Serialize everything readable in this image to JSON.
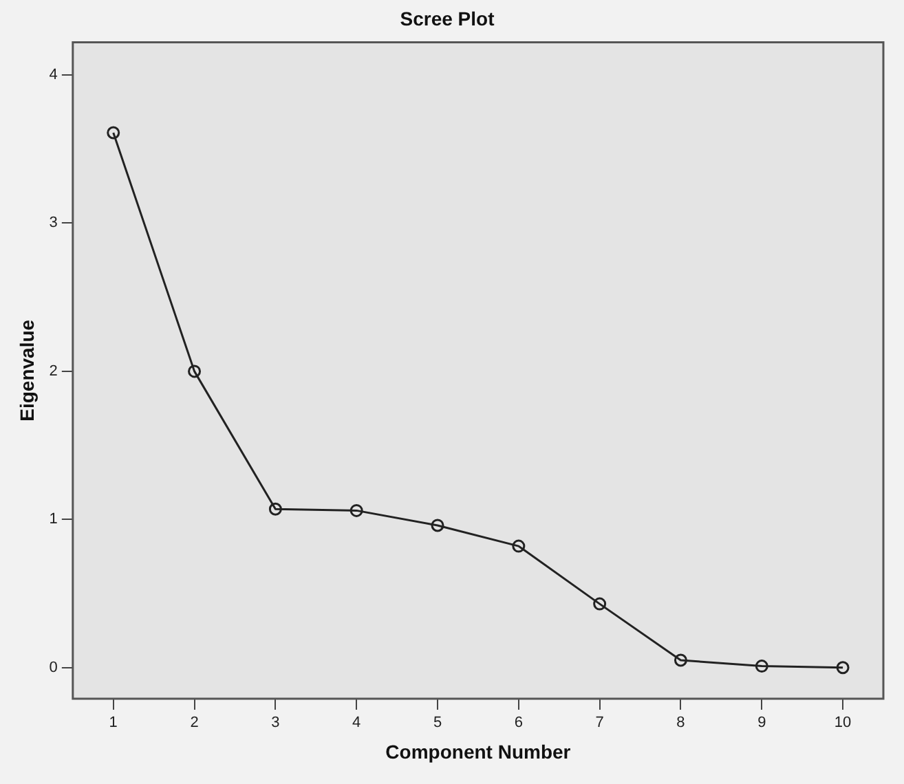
{
  "chart_data": {
    "type": "line",
    "title": "Scree Plot",
    "xlabel": "Component Number",
    "ylabel": "Eigenvalue",
    "categories": [
      "1",
      "2",
      "3",
      "4",
      "5",
      "6",
      "7",
      "8",
      "9",
      "10"
    ],
    "series": [
      {
        "color": "#222222",
        "values": [
          3.61,
          2.0,
          1.07,
          1.06,
          0.96,
          0.82,
          0.43,
          0.05,
          0.01,
          0.0
        ]
      }
    ],
    "ylim": [
      -0.21,
      4.22
    ],
    "yticks": [
      0,
      1,
      2,
      3,
      4
    ],
    "grid": false,
    "legend": false,
    "marker": "circle",
    "line_style": "solid"
  }
}
